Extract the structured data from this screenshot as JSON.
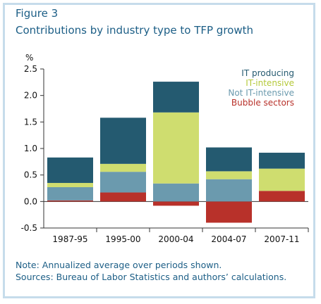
{
  "figure_label": "Figure 3",
  "title": "Contributions by industry type to TFP growth",
  "notes": [
    "Note: Annualized average over periods shown.",
    "Sources: Bureau of Labor Statistics and authors’ calculations."
  ],
  "chart_data": {
    "type": "bar",
    "stacked": true,
    "categories": [
      "1987-95",
      "1995-00",
      "2000-04",
      "2004-07",
      "2007-11"
    ],
    "series": [
      {
        "name": "Bubble sectors",
        "color": "#b8312a",
        "values": [
          0.02,
          0.17,
          -0.08,
          -0.4,
          0.2
        ]
      },
      {
        "name": "Not IT-intensive",
        "color": "#6b9aae",
        "values": [
          0.25,
          0.39,
          0.34,
          0.42,
          0.0
        ]
      },
      {
        "name": "IT-intensive",
        "color": "#cfdd6f",
        "values": [
          0.08,
          0.15,
          1.34,
          0.15,
          0.42
        ]
      },
      {
        "name": "IT producing",
        "color": "#245a70",
        "values": [
          0.48,
          0.87,
          0.58,
          0.45,
          0.3
        ]
      }
    ],
    "legend_order": [
      "IT producing",
      "IT-intensive",
      "Not IT-intensive",
      "Bubble sectors"
    ],
    "legend_position": "top-right",
    "ylabel": "%",
    "ylim": [
      -0.5,
      2.5
    ],
    "yticks": [
      "2.5",
      "2.0",
      "1.5",
      "1.0",
      "0.5",
      "0.0",
      "-0.5"
    ],
    "grid": false
  }
}
